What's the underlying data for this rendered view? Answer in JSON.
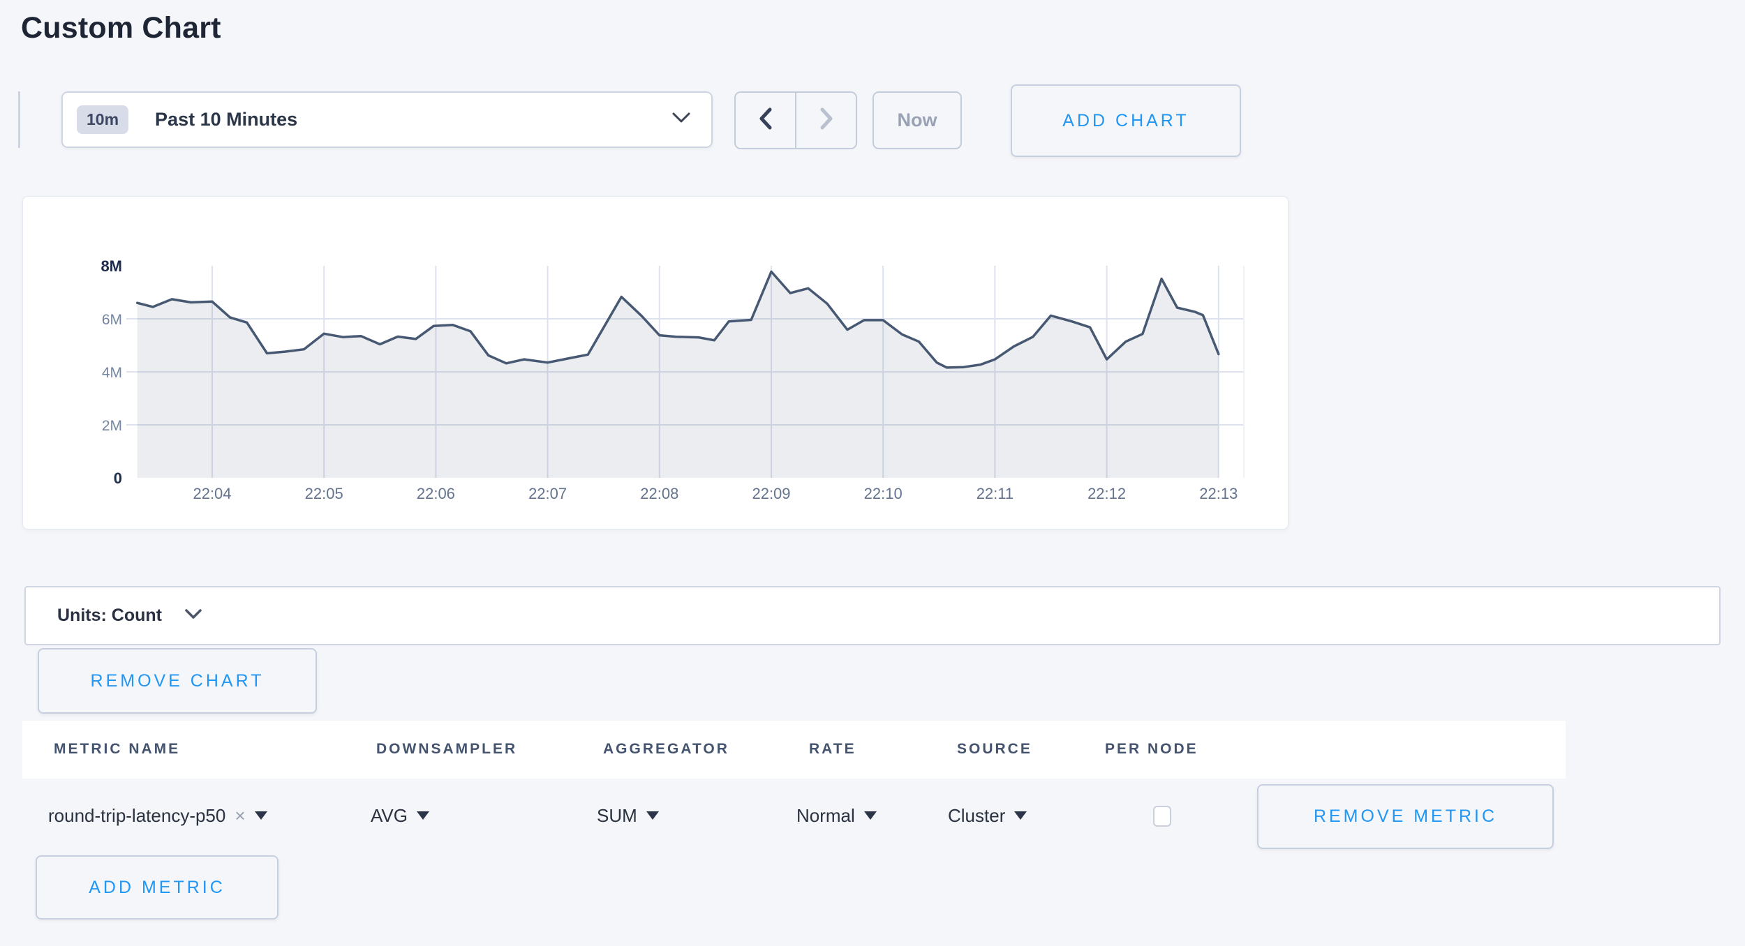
{
  "page": {
    "title": "Custom Chart"
  },
  "colors": {
    "accent_blue": "#2196f3",
    "page_background": "#f5f6fa",
    "line_color": "#475872",
    "fill_color": "rgba(71,88,114,0.11)",
    "grid_color": "#dde2ec"
  },
  "toolbar": {
    "time_badge": "10m",
    "time_label": "Past 10 Minutes",
    "prev_arrow": "chevron-left",
    "next_arrow": "chevron-right",
    "now_label": "Now",
    "add_chart_label": "ADD CHART"
  },
  "chart_data": {
    "type": "area",
    "units": "Count",
    "ylim": [
      0,
      8
    ],
    "x_range_minutes": [
      3.32,
      13.22
    ],
    "grid": true,
    "legend": "none",
    "y_ticks": [
      {
        "label": "8M",
        "value": 8,
        "strong": true
      },
      {
        "label": "6M",
        "value": 6,
        "strong": false
      },
      {
        "label": "4M",
        "value": 4,
        "strong": false
      },
      {
        "label": "2M",
        "value": 2,
        "strong": false
      },
      {
        "label": "0",
        "value": 0,
        "strong": true
      }
    ],
    "x_ticks": [
      {
        "label": "22:04",
        "minute": 4
      },
      {
        "label": "22:05",
        "minute": 5
      },
      {
        "label": "22:06",
        "minute": 6
      },
      {
        "label": "22:07",
        "minute": 7
      },
      {
        "label": "22:08",
        "minute": 8
      },
      {
        "label": "22:09",
        "minute": 9
      },
      {
        "label": "22:10",
        "minute": 10
      },
      {
        "label": "22:11",
        "minute": 11
      },
      {
        "label": "22:12",
        "minute": 12
      },
      {
        "label": "22:13",
        "minute": 13
      }
    ],
    "series": [
      {
        "name": "round-trip-latency-p50",
        "points_unit": "millions, x = minutes after 22:00",
        "points": [
          [
            3.33,
            6.6
          ],
          [
            3.47,
            6.45
          ],
          [
            3.64,
            6.74
          ],
          [
            3.81,
            6.62
          ],
          [
            4.0,
            6.65
          ],
          [
            4.16,
            6.05
          ],
          [
            4.31,
            5.86
          ],
          [
            4.49,
            4.7
          ],
          [
            4.65,
            4.76
          ],
          [
            4.82,
            4.85
          ],
          [
            5.0,
            5.44
          ],
          [
            5.17,
            5.31
          ],
          [
            5.33,
            5.35
          ],
          [
            5.5,
            5.04
          ],
          [
            5.66,
            5.33
          ],
          [
            5.82,
            5.24
          ],
          [
            5.98,
            5.73
          ],
          [
            6.15,
            5.77
          ],
          [
            6.31,
            5.53
          ],
          [
            6.47,
            4.62
          ],
          [
            6.63,
            4.32
          ],
          [
            6.79,
            4.47
          ],
          [
            7.0,
            4.35
          ],
          [
            7.19,
            4.51
          ],
          [
            7.36,
            4.65
          ],
          [
            7.66,
            6.83
          ],
          [
            7.84,
            6.11
          ],
          [
            8.0,
            5.38
          ],
          [
            8.15,
            5.32
          ],
          [
            8.35,
            5.3
          ],
          [
            8.49,
            5.19
          ],
          [
            8.62,
            5.9
          ],
          [
            8.82,
            5.96
          ],
          [
            9.0,
            7.78
          ],
          [
            9.17,
            6.97
          ],
          [
            9.33,
            7.15
          ],
          [
            9.5,
            6.57
          ],
          [
            9.68,
            5.59
          ],
          [
            9.83,
            5.95
          ],
          [
            10.0,
            5.95
          ],
          [
            10.17,
            5.41
          ],
          [
            10.32,
            5.14
          ],
          [
            10.48,
            4.35
          ],
          [
            10.57,
            4.16
          ],
          [
            10.72,
            4.18
          ],
          [
            10.87,
            4.27
          ],
          [
            11.0,
            4.47
          ],
          [
            11.17,
            4.96
          ],
          [
            11.34,
            5.32
          ],
          [
            11.5,
            6.12
          ],
          [
            11.69,
            5.9
          ],
          [
            11.85,
            5.68
          ],
          [
            12.0,
            4.47
          ],
          [
            12.17,
            5.14
          ],
          [
            12.32,
            5.43
          ],
          [
            12.49,
            7.51
          ],
          [
            12.63,
            6.42
          ],
          [
            12.79,
            6.26
          ],
          [
            12.86,
            6.14
          ],
          [
            13.0,
            4.67
          ]
        ]
      }
    ]
  },
  "units_bar": {
    "label": "Units: Count"
  },
  "chart_actions": {
    "remove_chart_label": "REMOVE CHART"
  },
  "metrics_table": {
    "headers": [
      "METRIC NAME",
      "DOWNSAMPLER",
      "AGGREGATOR",
      "RATE",
      "SOURCE",
      "PER NODE"
    ],
    "rows": [
      {
        "metric_name": "round-trip-latency-p50",
        "remove_tag_glyph": "×",
        "downsampler": "AVG",
        "aggregator": "SUM",
        "rate": "Normal",
        "source": "Cluster",
        "per_node_checked": false,
        "remove_label": "REMOVE METRIC"
      }
    ],
    "add_metric_label": "ADD METRIC"
  }
}
